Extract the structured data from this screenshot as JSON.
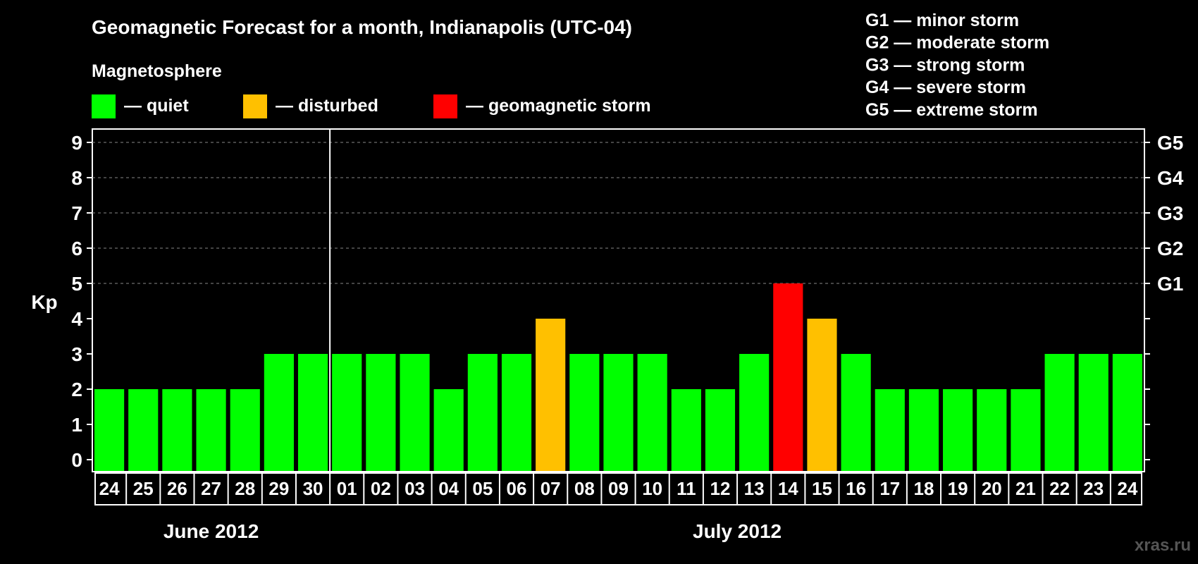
{
  "chart_data": {
    "type": "bar",
    "title": "Geomagnetic Forecast for a month, Indianapolis (UTC-04)",
    "subtitle": "Magnetosphere",
    "ylabel": "Kp",
    "ylim": [
      0,
      9
    ],
    "yticks": [
      "0",
      "1",
      "2",
      "3",
      "4",
      "5",
      "6",
      "7",
      "8",
      "9"
    ],
    "right_ticks": [
      {
        "value": 5,
        "label": "G1"
      },
      {
        "value": 6,
        "label": "G2"
      },
      {
        "value": 7,
        "label": "G3"
      },
      {
        "value": 8,
        "label": "G4"
      },
      {
        "value": 9,
        "label": "G5"
      }
    ],
    "grid": "dashed horizontal at Kp 5-9",
    "legend": [
      {
        "label": "— quiet",
        "color": "#00ff00"
      },
      {
        "label": "— disturbed",
        "color": "#ffc000"
      },
      {
        "label": "— geomagnetic storm",
        "color": "#ff0000"
      }
    ],
    "storm_scale": [
      "G1 — minor storm",
      "G2 — moderate storm",
      "G3 — strong storm",
      "G4 — severe storm",
      "G5 — extreme storm"
    ],
    "categories": [
      "24",
      "25",
      "26",
      "27",
      "28",
      "29",
      "30",
      "01",
      "02",
      "03",
      "04",
      "05",
      "06",
      "07",
      "08",
      "09",
      "10",
      "11",
      "12",
      "13",
      "14",
      "15",
      "16",
      "17",
      "18",
      "19",
      "20",
      "21",
      "22",
      "23",
      "24"
    ],
    "values": [
      2,
      2,
      2,
      2,
      2,
      3,
      3,
      3,
      3,
      3,
      2,
      3,
      3,
      4,
      3,
      3,
      3,
      2,
      2,
      3,
      5,
      4,
      3,
      2,
      2,
      2,
      2,
      2,
      3,
      3,
      3
    ],
    "colors": [
      "#00ff00",
      "#00ff00",
      "#00ff00",
      "#00ff00",
      "#00ff00",
      "#00ff00",
      "#00ff00",
      "#00ff00",
      "#00ff00",
      "#00ff00",
      "#00ff00",
      "#00ff00",
      "#00ff00",
      "#ffc000",
      "#00ff00",
      "#00ff00",
      "#00ff00",
      "#00ff00",
      "#00ff00",
      "#00ff00",
      "#ff0000",
      "#ffc000",
      "#00ff00",
      "#00ff00",
      "#00ff00",
      "#00ff00",
      "#00ff00",
      "#00ff00",
      "#00ff00",
      "#00ff00",
      "#00ff00"
    ],
    "month_groups": [
      {
        "label": "June 2012",
        "count": 7
      },
      {
        "label": "July 2012",
        "count": 24
      }
    ]
  },
  "watermark": "xras.ru"
}
